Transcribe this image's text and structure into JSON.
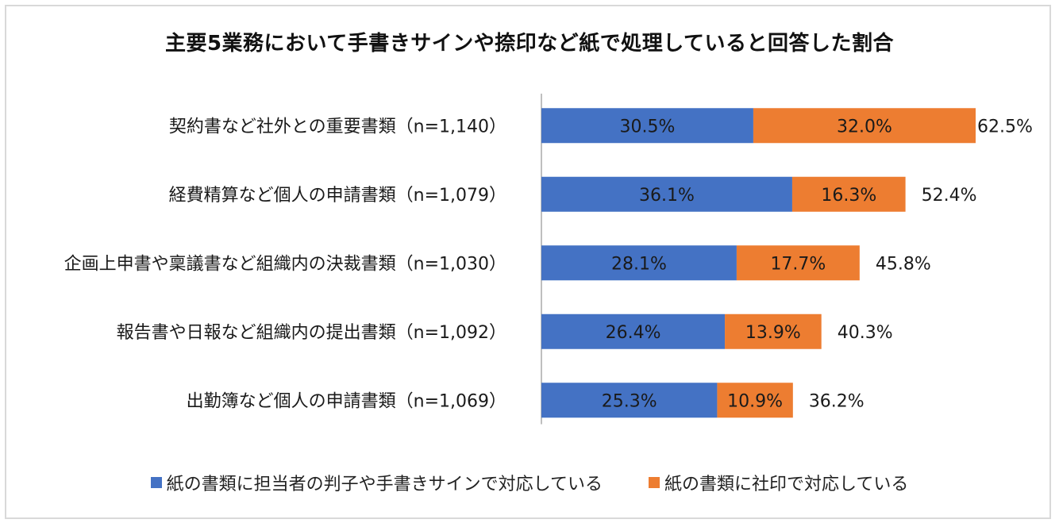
{
  "colors": {
    "series1": "#4472C4",
    "series2": "#ED7D31",
    "axis": "#bfbfbf",
    "text": "#1a1a1a"
  },
  "chart_data": {
    "type": "bar",
    "orientation": "horizontal",
    "stacked": true,
    "title": "主要5業務において手書きサインや捺印など紙で処理していると回答した割合",
    "categories": [
      "契約書など社外との重要書類（n=1,140）",
      "経費精算など個人の申請書類（n=1,079）",
      "企画上申書や稟議書など組織内の決裁書類（n=1,030）",
      "報告書や日報など組織内の提出書類（n=1,092）",
      "出勤簿など個人の申請書類（n=1,069）"
    ],
    "series": [
      {
        "name": "紙の書類に担当者の判子や手書きサインで対応している",
        "values": [
          30.5,
          36.1,
          28.1,
          26.4,
          25.3
        ],
        "labels": [
          "30.5%",
          "36.1%",
          "28.1%",
          "26.4%",
          "25.3%"
        ]
      },
      {
        "name": "紙の書類に社印で対応している",
        "values": [
          32.0,
          16.3,
          17.7,
          13.9,
          10.9
        ],
        "labels": [
          "32.0%",
          "16.3%",
          "17.7%",
          "13.9%",
          "10.9%"
        ]
      }
    ],
    "totals": [
      62.5,
      52.4,
      45.8,
      40.3,
      36.2
    ],
    "total_labels": [
      "62.5%",
      "52.4%",
      "45.8%",
      "40.3%",
      "36.2%"
    ],
    "xlim": [
      0,
      65
    ],
    "legend": "bottom",
    "grid": false
  }
}
